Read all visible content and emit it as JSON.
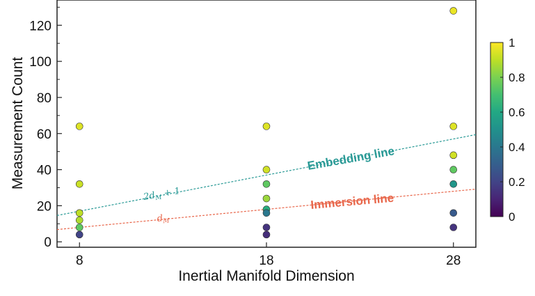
{
  "chart_data": {
    "type": "scatter",
    "xlabel": "Inertial Manifold Dimension",
    "ylabel": "Measurement Count",
    "xlim": [
      6.8,
      29.2
    ],
    "ylim": [
      -3,
      134
    ],
    "xticks": [
      8,
      18,
      28
    ],
    "yticks": [
      0,
      20,
      40,
      60,
      80,
      100,
      120
    ],
    "grid": false,
    "colormap": "viridis",
    "colorbar": {
      "ticks": [
        0,
        0.2,
        0.4,
        0.6,
        0.8,
        1
      ],
      "tick_labels": [
        "0",
        "0.2",
        "0.4",
        "0.6",
        "0.8",
        "1"
      ]
    },
    "points": [
      {
        "x": 8,
        "y": 64,
        "c": 0.95
      },
      {
        "x": 8,
        "y": 32,
        "c": 0.92
      },
      {
        "x": 8,
        "y": 16,
        "c": 0.9
      },
      {
        "x": 8,
        "y": 12,
        "c": 0.88
      },
      {
        "x": 8,
        "y": 8,
        "c": 0.75
      },
      {
        "x": 8,
        "y": 4,
        "c": 0.2
      },
      {
        "x": 18,
        "y": 64,
        "c": 0.95
      },
      {
        "x": 18,
        "y": 40,
        "c": 0.93
      },
      {
        "x": 18,
        "y": 32,
        "c": 0.75
      },
      {
        "x": 18,
        "y": 24,
        "c": 0.85
      },
      {
        "x": 18,
        "y": 18,
        "c": 0.62
      },
      {
        "x": 18,
        "y": 16,
        "c": 0.4
      },
      {
        "x": 18,
        "y": 8,
        "c": 0.15
      },
      {
        "x": 18,
        "y": 4,
        "c": 0.13
      },
      {
        "x": 28,
        "y": 128,
        "c": 0.97
      },
      {
        "x": 28,
        "y": 64,
        "c": 0.95
      },
      {
        "x": 28,
        "y": 48,
        "c": 0.93
      },
      {
        "x": 28,
        "y": 40,
        "c": 0.75
      },
      {
        "x": 28,
        "y": 32,
        "c": 0.52
      },
      {
        "x": 28,
        "y": 16,
        "c": 0.28
      },
      {
        "x": 28,
        "y": 8,
        "c": 0.15
      }
    ],
    "lines": [
      {
        "name": "Embedding line",
        "formula": "2d_M + 1",
        "slope": 2,
        "intercept": 1,
        "color": "#2a9a96",
        "style": "dashed"
      },
      {
        "name": "Immersion line",
        "formula": "d_M",
        "slope": 1,
        "intercept": 0,
        "color": "#e8664a",
        "style": "dashed"
      }
    ],
    "annotations": [
      {
        "text": "Embedding line",
        "color": "#2a9a96"
      },
      {
        "text": "Immersion line",
        "color": "#e8664a"
      },
      {
        "text": "2d",
        "sub": "M",
        "suffix": " + 1",
        "color": "#2a9a96"
      },
      {
        "text": "d",
        "sub": "M",
        "color": "#e8664a"
      }
    ]
  }
}
